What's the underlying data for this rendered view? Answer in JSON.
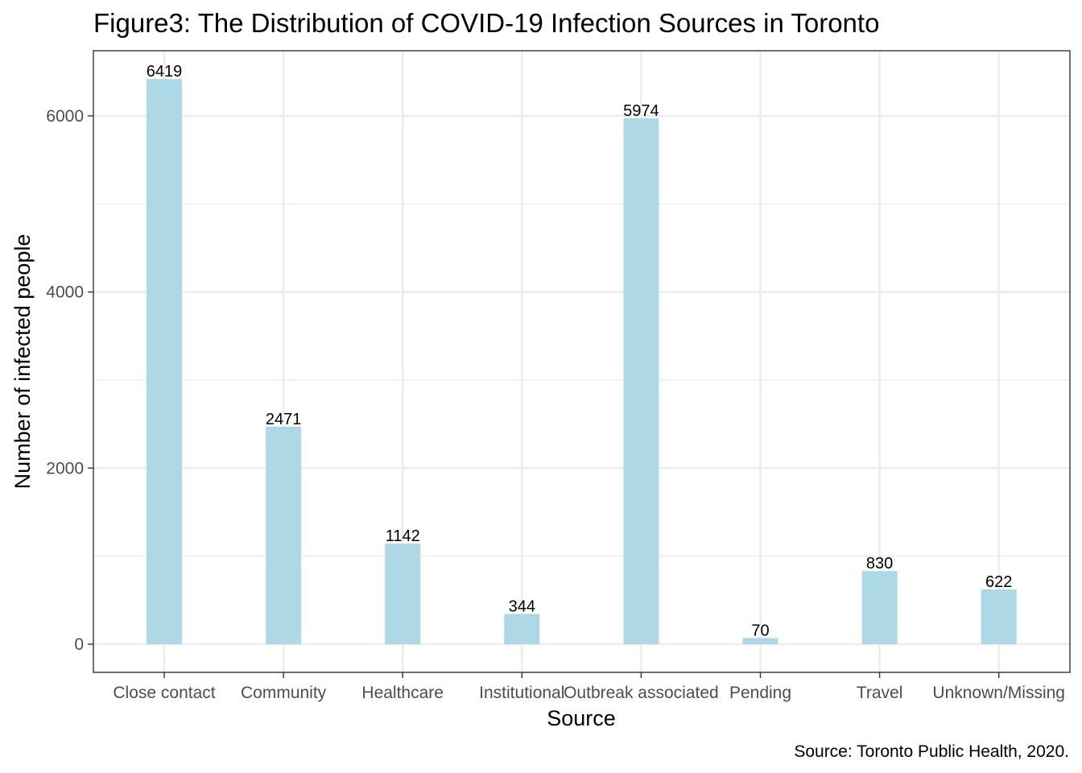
{
  "chart_data": {
    "type": "bar",
    "title": "Figure3: The Distribution of COVID-19 Infection Sources in Toronto",
    "xlabel": "Source",
    "ylabel": "Number of infected people",
    "caption": "Source: Toronto Public Health, 2020.",
    "categories": [
      "Close contact",
      "Community",
      "Healthcare",
      "Institutional",
      "Outbreak associated",
      "Pending",
      "Travel",
      "Unknown/Missing"
    ],
    "values": [
      6419,
      2471,
      1142,
      344,
      5974,
      70,
      830,
      622
    ],
    "data_labels": [
      "6419",
      "2471",
      "1142",
      "344",
      "5974",
      "70",
      "830",
      "622"
    ],
    "ylim": [
      -320,
      6740
    ],
    "y_ticks": [
      0,
      2000,
      4000,
      6000
    ],
    "y_tick_labels": [
      "0",
      "2000",
      "4000",
      "6000"
    ],
    "y_minor_ticks": [
      1000,
      3000,
      5000
    ],
    "bar_color": "#add8e6",
    "grid": true,
    "panel_border_color": "#333333",
    "grid_color": "#ebebeb",
    "legend": "none"
  }
}
